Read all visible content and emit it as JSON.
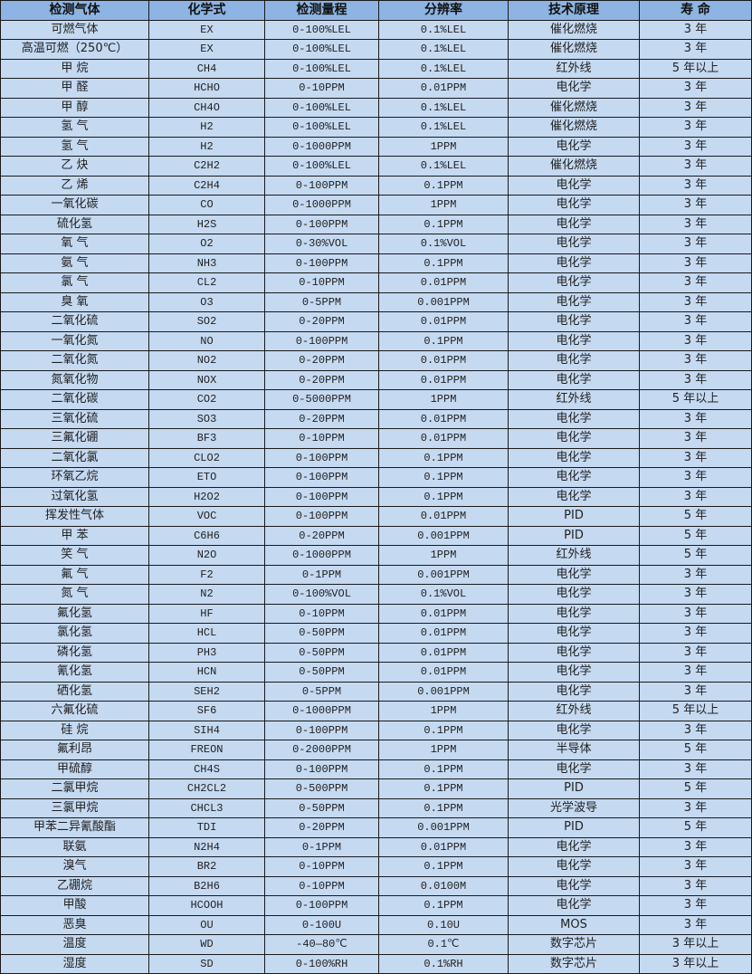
{
  "colors": {
    "header_bg": "#8db4e2",
    "row_bg": "#c5d9f1",
    "border": "#1a1a1a"
  },
  "headers": [
    "检测气体",
    "化学式",
    "检测量程",
    "分辨率",
    "技术原理",
    "寿 命"
  ],
  "rows": [
    [
      "可燃气体",
      "EX",
      "0-100%LEL",
      "0.1%LEL",
      "催化燃烧",
      "3 年"
    ],
    [
      "高温可燃（250℃）",
      "EX",
      "0-100%LEL",
      "0.1%LEL",
      "催化燃烧",
      "3 年"
    ],
    [
      "甲 烷",
      "CH4",
      "0-100%LEL",
      "0.1%LEL",
      "红外线",
      "5 年以上"
    ],
    [
      "甲 醛",
      "HCHO",
      "0-10PPM",
      "0.01PPM",
      "电化学",
      "3 年"
    ],
    [
      "甲 醇",
      "CH4O",
      "0-100%LEL",
      "0.1%LEL",
      "催化燃烧",
      "3 年"
    ],
    [
      "氢 气",
      "H2",
      "0-100%LEL",
      "0.1%LEL",
      "催化燃烧",
      "3 年"
    ],
    [
      "氢 气",
      "H2",
      "0-1000PPM",
      "1PPM",
      "电化学",
      "3 年"
    ],
    [
      "乙 炔",
      "C2H2",
      "0-100%LEL",
      "0.1%LEL",
      "催化燃烧",
      "3 年"
    ],
    [
      "乙 烯",
      "C2H4",
      "0-100PPM",
      "0.1PPM",
      "电化学",
      "3 年"
    ],
    [
      "一氧化碳",
      "CO",
      "0-1000PPM",
      "1PPM",
      "电化学",
      "3 年"
    ],
    [
      "硫化氢",
      "H2S",
      "0-100PPM",
      "0.1PPM",
      "电化学",
      "3 年"
    ],
    [
      "氧 气",
      "O2",
      "0-30%VOL",
      "0.1%VOL",
      "电化学",
      "3 年"
    ],
    [
      "氨 气",
      "NH3",
      "0-100PPM",
      "0.1PPM",
      "电化学",
      "3 年"
    ],
    [
      "氯 气",
      "CL2",
      "0-10PPM",
      "0.01PPM",
      "电化学",
      "3 年"
    ],
    [
      "臭 氧",
      "O3",
      "0-5PPM",
      "0.001PPM",
      "电化学",
      "3 年"
    ],
    [
      "二氧化硫",
      "SO2",
      "0-20PPM",
      "0.01PPM",
      "电化学",
      "3 年"
    ],
    [
      "一氧化氮",
      "NO",
      "0-100PPM",
      "0.1PPM",
      "电化学",
      "3 年"
    ],
    [
      "二氧化氮",
      "NO2",
      "0-20PPM",
      "0.01PPM",
      "电化学",
      "3 年"
    ],
    [
      "氮氧化物",
      "NOX",
      "0-20PPM",
      "0.01PPM",
      "电化学",
      "3 年"
    ],
    [
      "二氧化碳",
      "CO2",
      "0-5000PPM",
      "1PPM",
      "红外线",
      "5 年以上"
    ],
    [
      "三氧化硫",
      "SO3",
      "0-20PPM",
      "0.01PPM",
      "电化学",
      "3 年"
    ],
    [
      "三氟化硼",
      "BF3",
      "0-10PPM",
      "0.01PPM",
      "电化学",
      "3 年"
    ],
    [
      "二氧化氯",
      "CLO2",
      "0-100PPM",
      "0.1PPM",
      "电化学",
      "3 年"
    ],
    [
      "环氧乙烷",
      "ETO",
      "0-100PPM",
      "0.1PPM",
      "电化学",
      "3 年"
    ],
    [
      "过氧化氢",
      "H2O2",
      "0-100PPM",
      "0.1PPM",
      "电化学",
      "3 年"
    ],
    [
      "挥发性气体",
      "VOC",
      "0-100PPM",
      "0.01PPM",
      "PID",
      "5 年"
    ],
    [
      "甲 苯",
      "C6H6",
      "0-20PPM",
      "0.001PPM",
      "PID",
      "5 年"
    ],
    [
      "笑 气",
      "N2O",
      "0-1000PPM",
      "1PPM",
      "红外线",
      "5 年"
    ],
    [
      "氟 气",
      "F2",
      "0-1PPM",
      "0.001PPM",
      "电化学",
      "3 年"
    ],
    [
      "氮 气",
      "N2",
      "0-100%VOL",
      "0.1%VOL",
      "电化学",
      "3 年"
    ],
    [
      "氟化氢",
      "HF",
      "0-10PPM",
      "0.01PPM",
      "电化学",
      "3 年"
    ],
    [
      "氯化氢",
      "HCL",
      "0-50PPM",
      "0.01PPM",
      "电化学",
      "3 年"
    ],
    [
      "磷化氢",
      "PH3",
      "0-50PPM",
      "0.01PPM",
      "电化学",
      "3 年"
    ],
    [
      "氰化氢",
      "HCN",
      "0-50PPM",
      "0.01PPM",
      "电化学",
      "3 年"
    ],
    [
      "硒化氢",
      "SEH2",
      "0-5PPM",
      "0.001PPM",
      "电化学",
      "3 年"
    ],
    [
      "六氟化硫",
      "SF6",
      "0-1000PPM",
      "1PPM",
      "红外线",
      "5 年以上"
    ],
    [
      "硅 烷",
      "SIH4",
      "0-100PPM",
      "0.1PPM",
      "电化学",
      "3 年"
    ],
    [
      "氟利昂",
      "FREON",
      "0-2000PPM",
      "1PPM",
      "半导体",
      "5 年"
    ],
    [
      "甲硫醇",
      "CH4S",
      "0-100PPM",
      "0.1PPM",
      "电化学",
      "3 年"
    ],
    [
      "二氯甲烷",
      "CH2CL2",
      "0-500PPM",
      "0.1PPM",
      "PID",
      "5 年"
    ],
    [
      "三氯甲烷",
      "CHCL3",
      "0-50PPM",
      "0.1PPM",
      "光学波导",
      "3 年"
    ],
    [
      "甲苯二异氰酸酯",
      "TDI",
      "0-20PPM",
      "0.001PPM",
      "PID",
      "5 年"
    ],
    [
      "联氨",
      "N2H4",
      "0-1PPM",
      "0.01PPM",
      "电化学",
      "3 年"
    ],
    [
      "溴气",
      "BR2",
      "0-10PPM",
      "0.1PPM",
      "电化学",
      "3 年"
    ],
    [
      "乙硼烷",
      "B2H6",
      "0-10PPM",
      "0.0100M",
      "电化学",
      "3 年"
    ],
    [
      "甲酸",
      "HCOOH",
      "0-100PPM",
      "0.1PPM",
      "电化学",
      "3 年"
    ],
    [
      "恶臭",
      "OU",
      "0-100U",
      "0.10U",
      "MOS",
      "3 年"
    ],
    [
      "温度",
      "WD",
      "-40—80℃",
      "0.1℃",
      "数字芯片",
      "3 年以上"
    ],
    [
      "湿度",
      "SD",
      "0-100%RH",
      "0.1%RH",
      "数字芯片",
      "3 年以上"
    ]
  ]
}
